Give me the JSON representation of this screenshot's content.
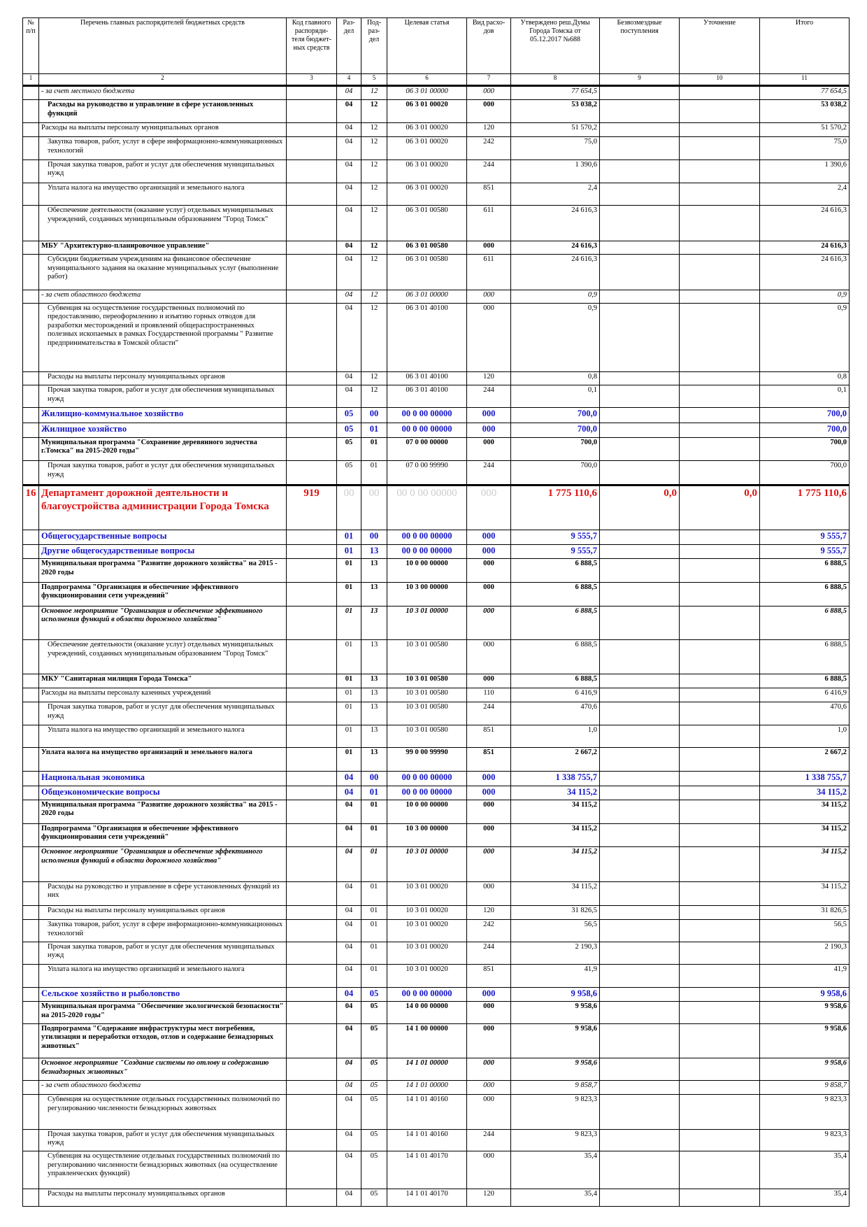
{
  "header": {
    "columns": [
      "№ п/п",
      "Перечень главных распорядителей бюджетных средств",
      "Код главного распоряди-теля бюджет-ных средств",
      "Раз-дел",
      "Под-раз-дел",
      "Целевая статья",
      "Вид расхо-дов",
      "Утверждено реш.Думы Города Томска от 05.12.2017 №688",
      "Безвозмездные поступления",
      "Уточнение",
      "Итого"
    ],
    "numbers": [
      1,
      2,
      3,
      4,
      5,
      6,
      7,
      8,
      9,
      10,
      11
    ]
  },
  "table": {
    "rows": [
      [
        null,
        "- за счет местного бюджета",
        null,
        "04",
        "12",
        "06 3 01 00000",
        "000",
        "77 654,5",
        null,
        null,
        "77 654,5"
      ],
      [
        null,
        "Расходы на руководство и управление в сфере установленных функций",
        null,
        "04",
        "12",
        "06 3 01 00020",
        "000",
        "53 038,2",
        null,
        null,
        "53 038,2"
      ],
      [
        null,
        "Расходы на выплаты персоналу муниципальных органов",
        null,
        "04",
        "12",
        "06 3 01 00020",
        "120",
        "51 570,2",
        null,
        null,
        "51 570,2"
      ],
      [
        null,
        "Закупка товаров, работ, услуг в сфере информационно-коммуникационных технологий",
        null,
        "04",
        "12",
        "06 3 01 00020",
        "242",
        "75,0",
        null,
        null,
        "75,0"
      ],
      [
        null,
        "Прочая закупка товаров, работ и услуг для обеспечения муниципальных нужд",
        null,
        "04",
        "12",
        "06 3 01 00020",
        "244",
        "1 390,6",
        null,
        null,
        "1 390,6"
      ],
      [
        null,
        "Уплата налога на имущество организаций и земельного налога",
        null,
        "04",
        "12",
        "06 3 01 00020",
        "851",
        "2,4",
        null,
        null,
        "2,4"
      ],
      [
        null,
        "Обеспечение деятельности (оказание услуг) отдельных муниципальных учреждений, созданных муниципальным образованием \"Город Томск\"",
        null,
        "04",
        "12",
        "06 3 01 00580",
        "611",
        "24 616,3",
        null,
        null,
        "24 616,3"
      ],
      [
        null,
        "МБУ \"Архитектурно-планировочное управление\"",
        null,
        "04",
        "12",
        "06 3 01 00580",
        "000",
        "24 616,3",
        null,
        null,
        "24 616,3"
      ],
      [
        null,
        "Субсидии бюджетным учреждениям на финансовое обеспечение муниципального задания на оказание муниципальных услуг (выполнение работ)",
        null,
        "04",
        "12",
        "06 3 01 00580",
        "611",
        "24 616,3",
        null,
        null,
        "24 616,3"
      ],
      [
        null,
        "- за счет областного бюджета",
        null,
        "04",
        "12",
        "06 3 01 00000",
        "000",
        "0,9",
        null,
        null,
        "0,9"
      ],
      [
        null,
        "Субвенция на осуществление государственных полномочий по предоставлению, переоформлению и изъятию горных отводов для разработки месторождений и проявлений общераспространенных полезных ископаемых в рамках Государственной программы \" Развитие предпринимательства в Томской области\"",
        null,
        "04",
        "12",
        "06 3 01 40100",
        "000",
        "0,9",
        null,
        null,
        "0,9"
      ],
      [
        null,
        "Расходы на выплаты персоналу муниципальных органов",
        null,
        "04",
        "12",
        "06 3 01 40100",
        "120",
        "0,8",
        null,
        null,
        "0,8"
      ],
      [
        null,
        "Прочая закупка товаров, работ и услуг для обеспечения муниципальных нужд",
        null,
        "04",
        "12",
        "06 3 01 40100",
        "244",
        "0,1",
        null,
        null,
        "0,1"
      ],
      [
        null,
        "Жилищно-коммунальное хозяйство",
        null,
        "05",
        "00",
        "00 0 00 00000",
        "000",
        "700,0",
        null,
        null,
        "700,0"
      ],
      [
        null,
        "Жилищное хозяйство",
        null,
        "05",
        "01",
        "00 0 00 00000",
        "000",
        "700,0",
        null,
        null,
        "700,0"
      ],
      [
        null,
        "Муниципальная программа \"Сохранение деревянного зодчества г.Томска\" на  2015-2020 годы\"",
        null,
        "05",
        "01",
        "07 0 00 00000",
        "000",
        "700,0",
        null,
        null,
        "700,0"
      ],
      [
        null,
        "Прочая закупка товаров, работ и услуг для обеспечения муниципальных нужд",
        null,
        "05",
        "01",
        "07 0 00 99990",
        "244",
        "700,0",
        null,
        null,
        "700,0"
      ],
      [
        "16",
        "Департамент дорожной деятельности и благоустройства администрации Города Томска",
        "919",
        "00",
        "00",
        "00 0 00 00000",
        "000",
        "1 775 110,6",
        "0,0",
        "0,0",
        "1 775 110,6"
      ],
      [
        null,
        "Общегосударственные вопросы",
        null,
        "01",
        "00",
        "00 0 00 00000",
        "000",
        "9 555,7",
        null,
        null,
        "9 555,7"
      ],
      [
        null,
        "Другие общегосударственные вопросы",
        null,
        "01",
        "13",
        "00 0 00 00000",
        "000",
        "9 555,7",
        null,
        null,
        "9 555,7"
      ],
      [
        null,
        "Муниципальная программа \"Развитие дорожного хозяйства\" на 2015 - 2020 годы",
        null,
        "01",
        "13",
        "10 0 00 00000",
        "000",
        "6 888,5",
        null,
        null,
        "6 888,5"
      ],
      [
        null,
        "Подпрограмма \"Организация и обеспечение эффективного функционирования сети учреждений\"",
        null,
        "01",
        "13",
        "10 3 00 00000",
        "000",
        "6 888,5",
        null,
        null,
        "6 888,5"
      ],
      [
        null,
        "Основное мероприятие \"Организация и обеспечение эффективного исполнения функций в области дорожного хозяйства\"",
        null,
        "01",
        "13",
        "10 3 01 00000",
        "000",
        "6 888,5",
        null,
        null,
        "6 888,5"
      ],
      [
        null,
        "Обеспечение деятельности (оказание услуг) отдельных муниципальных учреждений, созданных муниципальным образованием \"Город Томск\"",
        null,
        "01",
        "13",
        "10 3 01 00580",
        "000",
        "6 888,5",
        null,
        null,
        "6 888,5"
      ],
      [
        null,
        "МКУ \"Санитарная милиция Города Томска\"",
        null,
        "01",
        "13",
        "10 3 01 00580",
        "000",
        "6 888,5",
        null,
        null,
        "6 888,5"
      ],
      [
        null,
        "Расходы на выплаты персоналу казенных учреждений",
        null,
        "01",
        "13",
        "10 3 01 00580",
        "110",
        "6 416,9",
        null,
        null,
        "6 416,9"
      ],
      [
        null,
        "Прочая закупка товаров, работ и услуг для обеспечения муниципальных нужд",
        null,
        "01",
        "13",
        "10 3 01 00580",
        "244",
        "470,6",
        null,
        null,
        "470,6"
      ],
      [
        null,
        "Уплата налога на имущество организаций и земельного налога",
        null,
        "01",
        "13",
        "10 3 01 00580",
        "851",
        "1,0",
        null,
        null,
        "1,0"
      ],
      [
        null,
        "Уплата налога на имущество организаций и земельного налога",
        null,
        "01",
        "13",
        "99 0 00 99990",
        "851",
        "2 667,2",
        null,
        null,
        "2 667,2"
      ],
      [
        null,
        "Национальная экономика",
        null,
        "04",
        "00",
        "00 0 00 00000",
        "000",
        "1 338 755,7",
        null,
        null,
        "1 338 755,7"
      ],
      [
        null,
        "Общеэкономические вопросы",
        null,
        "04",
        "01",
        "00 0 00 00000",
        "000",
        "34 115,2",
        null,
        null,
        "34 115,2"
      ],
      [
        null,
        "Муниципальная программа \"Развитие дорожного хозяйства\" на 2015 - 2020 годы",
        null,
        "04",
        "01",
        "10 0 00 00000",
        "000",
        "34 115,2",
        null,
        null,
        "34 115,2"
      ],
      [
        null,
        "Подпрограмма \"Организация и обеспечение эффективного функционирования сети учреждений\"",
        null,
        "04",
        "01",
        "10 3 00 00000",
        "000",
        "34 115,2",
        null,
        null,
        "34 115,2"
      ],
      [
        null,
        "Основное мероприятие \"Организация и обеспечение эффективного исполнения функций в области дорожного хозяйства\"",
        null,
        "04",
        "01",
        "10 3 01 00000",
        "000",
        "34 115,2",
        null,
        null,
        "34 115,2"
      ],
      [
        null,
        "Расходы на руководство и управление в сфере установленных функций из них",
        null,
        "04",
        "01",
        "10 3 01 00020",
        "000",
        "34 115,2",
        null,
        null,
        "34 115,2"
      ],
      [
        null,
        "Расходы на выплаты персоналу муниципальных органов",
        null,
        "04",
        "01",
        "10 3 01 00020",
        "120",
        "31 826,5",
        null,
        null,
        "31 826,5"
      ],
      [
        null,
        "Закупка товаров, работ, услуг в сфере информационно-коммуникационных технологий",
        null,
        "04",
        "01",
        "10 3 01 00020",
        "242",
        "56,5",
        null,
        null,
        "56,5"
      ],
      [
        null,
        "Прочая закупка товаров, работ и услуг для обеспечения муниципальных нужд",
        null,
        "04",
        "01",
        "10 3 01 00020",
        "244",
        "2 190,3",
        null,
        null,
        "2 190,3"
      ],
      [
        null,
        "Уплата налога на имущество организаций и земельного налога",
        null,
        "04",
        "01",
        "10 3 01 00020",
        "851",
        "41,9",
        null,
        null,
        "41,9"
      ],
      [
        null,
        "Сельское хозяйство и рыболовство",
        null,
        "04",
        "05",
        "00 0 00 00000",
        "000",
        "9 958,6",
        null,
        null,
        "9 958,6"
      ],
      [
        null,
        "Муниципальная программа \"Обеспечение экологической безопасности\" на 2015-2020 годы\"",
        null,
        "04",
        "05",
        "14 0 00 00000",
        "000",
        "9 958,6",
        null,
        null,
        "9 958,6"
      ],
      [
        null,
        "Подпрограмма \"Содержание инфраструктуры мест погребения, утилизации и переработки отходов, отлов и содержание безнадзорных животных\"",
        null,
        "04",
        "05",
        "14 1 00 00000",
        "000",
        "9 958,6",
        null,
        null,
        "9 958,6"
      ],
      [
        null,
        "Основное мероприятие \"Создание системы по отлову и содержанию безнадзорных животных\"",
        null,
        "04",
        "05",
        "14 1 01 00000",
        "000",
        "9 958,6",
        null,
        null,
        "9 958,6"
      ],
      [
        null,
        "- за счет областного бюджета",
        null,
        "04",
        "05",
        "14 1 01 00000",
        "000",
        "9 858,7",
        null,
        null,
        "9 858,7"
      ],
      [
        null,
        "Субвенция на осуществление отдельных государственных полномочий по регулированию численности безнадзорных животных",
        null,
        "04",
        "05",
        "14 1 01 40160",
        "000",
        "9 823,3",
        null,
        null,
        "9 823,3"
      ],
      [
        null,
        "Прочая закупка товаров, работ и услуг для обеспечения муниципальных нужд",
        null,
        "04",
        "05",
        "14 1 01 40160",
        "244",
        "9 823,3",
        null,
        null,
        "9 823,3"
      ],
      [
        null,
        "Субвенция на осуществление отдельных государственных полномочий по регулированию численности безнадзорных животных (на осуществление управленческих функций)",
        null,
        "04",
        "05",
        "14 1 01 40170",
        "000",
        "35,4",
        null,
        null,
        "35,4"
      ],
      [
        null,
        "Расходы на выплаты персоналу муниципальных органов",
        null,
        "04",
        "05",
        "14 1 01 40170",
        "120",
        "35,4",
        null,
        null,
        "35,4"
      ]
    ]
  }
}
